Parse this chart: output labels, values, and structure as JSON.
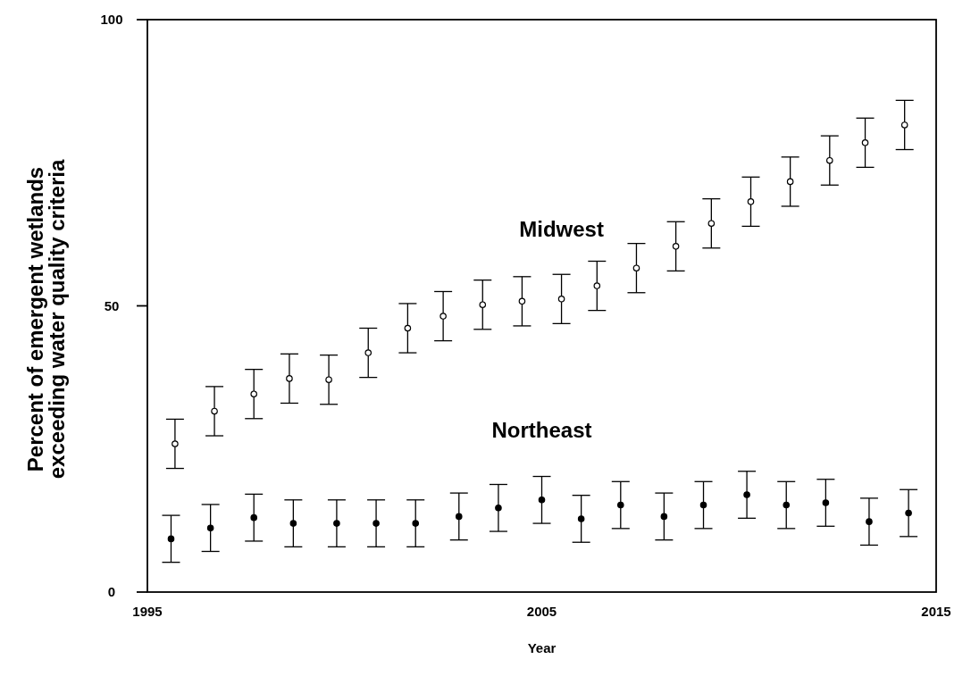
{
  "chart_data": {
    "type": "scatter",
    "xlabel": "Year",
    "ylabel": "Percent of emergent wetlands\nexceeding water quality criteria",
    "xlim": [
      1995,
      2015
    ],
    "xticks": [
      1995,
      2005,
      2015
    ],
    "ylim": [
      0,
      100
    ],
    "yticks": [
      0,
      50,
      100
    ],
    "grid": false,
    "marker": "circle",
    "series": [
      {
        "name": "Midwest",
        "color": "#000000",
        "x": [
          1995.7,
          1996.7,
          1997.7,
          1998.6,
          1999.6,
          2000.6,
          2001.6,
          2002.5,
          2003.5,
          2004.5,
          2005.5,
          2006.4,
          2007.4,
          2008.4,
          2009.3,
          2010.3,
          2011.3,
          2012.3,
          2013.2,
          2014.2
        ],
        "values": [
          25.9,
          31.6,
          34.6,
          37.3,
          37.1,
          41.8,
          46.1,
          48.2,
          50.2,
          50.8,
          51.2,
          53.5,
          56.6,
          60.4,
          64.4,
          68.2,
          71.7,
          75.4,
          78.5,
          81.6
        ],
        "errors": [
          4.3,
          4.3,
          4.3,
          4.3,
          4.3,
          4.3,
          4.3,
          4.3,
          4.3,
          4.3,
          4.3,
          4.3,
          4.3,
          4.3,
          4.3,
          4.3,
          4.3,
          4.3,
          4.3,
          4.3
        ]
      },
      {
        "name": "Northeast",
        "color": "#000000",
        "x": [
          1995.6,
          1996.6,
          1997.7,
          1998.7,
          1999.8,
          2000.8,
          2001.8,
          2002.9,
          2003.9,
          2005.0,
          2006.0,
          2007.0,
          2008.1,
          2009.1,
          2010.2,
          2011.2,
          2012.2,
          2013.3,
          2014.3
        ],
        "values": [
          9.3,
          11.2,
          13.0,
          12.0,
          12.0,
          12.0,
          12.0,
          13.2,
          14.7,
          16.1,
          12.8,
          15.2,
          13.2,
          15.2,
          17.0,
          15.2,
          15.6,
          12.3,
          13.8
        ],
        "errors": [
          4.1,
          4.1,
          4.1,
          4.1,
          4.1,
          4.1,
          4.1,
          4.1,
          4.1,
          4.1,
          4.1,
          4.1,
          4.1,
          4.1,
          4.1,
          4.1,
          4.1,
          4.1,
          4.1
        ]
      }
    ]
  }
}
